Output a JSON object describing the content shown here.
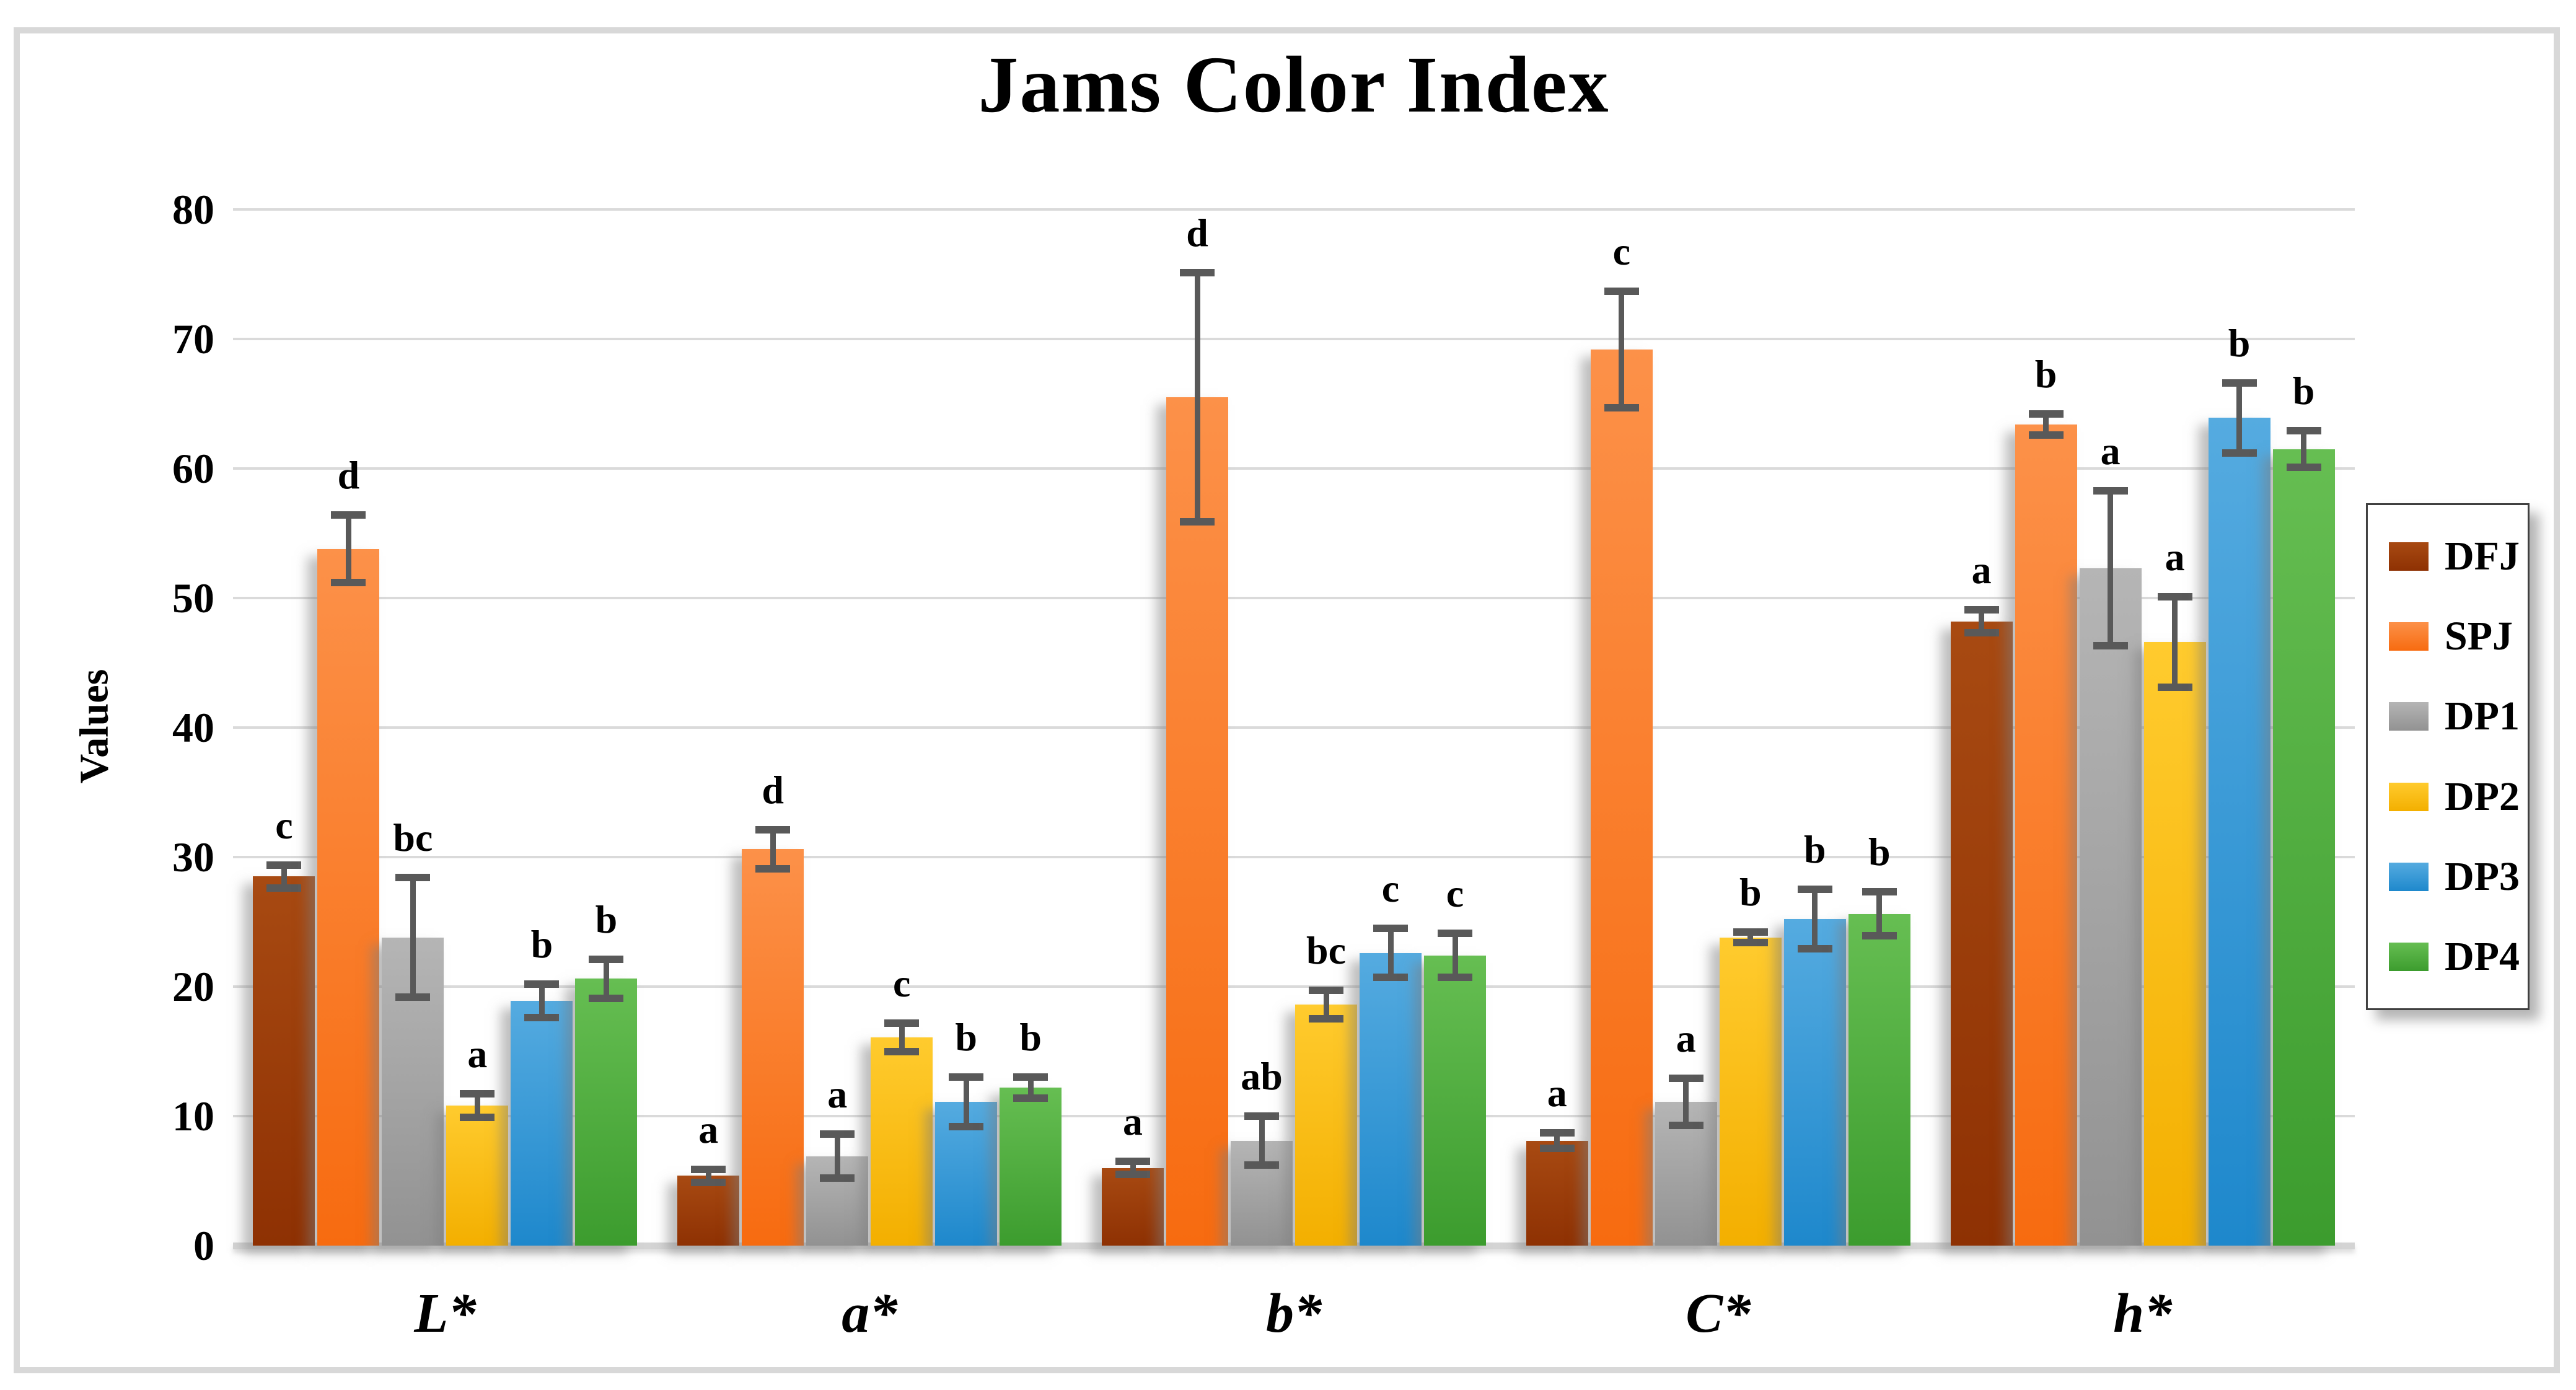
{
  "title": "Jams Color Index",
  "y_axis": {
    "label": "Values",
    "tick_values": [
      0,
      10,
      20,
      30,
      40,
      50,
      60,
      70,
      80
    ]
  },
  "x_axis": {
    "categories": [
      "L*",
      "a*",
      "b*",
      "C*",
      "h*"
    ]
  },
  "legend": {
    "entries": [
      "DFJ",
      "SPJ",
      "DP1",
      "DP2",
      "DP3",
      "DP4"
    ]
  },
  "colors": {
    "gridline": "#DADADA",
    "error_bar": "#595959",
    "DFJ": "#9A3B07",
    "SPJ": "#F9731D",
    "DP1": "#A6A6A6",
    "DP2": "#FFC000",
    "DP3": "#2E9BD6",
    "DP4": "#52B043"
  },
  "chart_data": {
    "type": "bar",
    "title": "Jams Color Index",
    "xlabel": "",
    "ylabel": "Values",
    "ylim": [
      0,
      80
    ],
    "grid": true,
    "legend_position": "right",
    "categories": [
      "L*",
      "a*",
      "b*",
      "C*",
      "h*"
    ],
    "series": [
      {
        "name": "DFJ",
        "color_top": "#A84A12",
        "color_bottom": "#8E3103",
        "chip_color": "#9A3B07",
        "values": [
          28.5,
          5.4,
          6.0,
          8.1,
          48.2
        ],
        "errors": [
          0.9,
          0.5,
          0.5,
          0.6,
          0.9
        ],
        "letters": [
          "c",
          "a",
          "a",
          "a",
          "a"
        ]
      },
      {
        "name": "SPJ",
        "color_top": "#FC9149",
        "color_bottom": "#F76B10",
        "chip_color": "#F9731D",
        "values": [
          53.8,
          30.6,
          65.5,
          69.2,
          63.4
        ],
        "errors": [
          2.6,
          1.5,
          9.6,
          4.5,
          0.8
        ],
        "letters": [
          "d",
          "d",
          "d",
          "c",
          "b"
        ]
      },
      {
        "name": "DP1",
        "color_top": "#B5B5B5",
        "color_bottom": "#929292",
        "chip_color": "#A6A6A6",
        "values": [
          23.8,
          6.9,
          8.1,
          11.1,
          52.3
        ],
        "errors": [
          4.6,
          1.7,
          1.9,
          1.8,
          6.0
        ],
        "letters": [
          "bc",
          "a",
          "ab",
          "a",
          "a"
        ]
      },
      {
        "name": "DP2",
        "color_top": "#FFCB2E",
        "color_bottom": "#F3AF00",
        "chip_color": "#FFC000",
        "values": [
          10.8,
          16.1,
          18.6,
          23.8,
          46.6
        ],
        "errors": [
          0.9,
          1.1,
          1.1,
          0.4,
          3.5
        ],
        "letters": [
          "a",
          "c",
          "bc",
          "b",
          "a"
        ]
      },
      {
        "name": "DP3",
        "color_top": "#55ABE0",
        "color_bottom": "#1E88CC",
        "chip_color": "#2E9BD6",
        "values": [
          18.9,
          11.1,
          22.6,
          25.2,
          63.9
        ],
        "errors": [
          1.3,
          1.9,
          1.9,
          2.3,
          2.7
        ],
        "letters": [
          "b",
          "b",
          "c",
          "b",
          "b"
        ]
      },
      {
        "name": "DP4",
        "color_top": "#66BE52",
        "color_bottom": "#3C9C2E",
        "chip_color": "#52B043",
        "values": [
          20.6,
          12.2,
          22.4,
          25.6,
          61.5
        ],
        "errors": [
          1.5,
          0.8,
          1.7,
          1.7,
          1.4
        ],
        "letters": [
          "b",
          "b",
          "c",
          "b",
          "b"
        ]
      }
    ]
  }
}
